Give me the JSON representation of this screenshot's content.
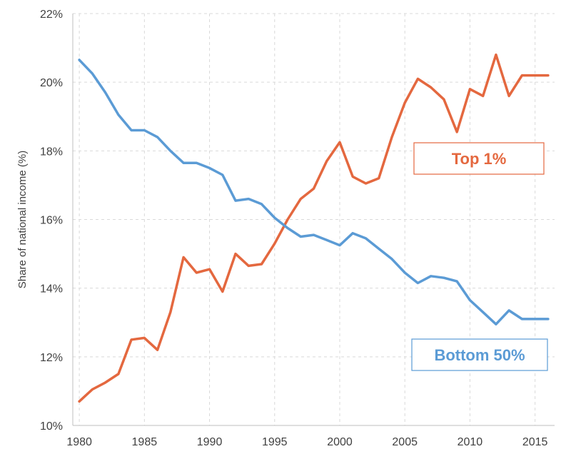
{
  "chart_data": {
    "type": "line",
    "xlabel": "",
    "ylabel": "Share of national income (%)",
    "xlim": [
      1979.5,
      2016.5
    ],
    "ylim": [
      10,
      22
    ],
    "x_ticks": [
      1980,
      1985,
      1990,
      1995,
      2000,
      2005,
      2010,
      2015
    ],
    "y_ticks": [
      10,
      12,
      14,
      16,
      18,
      20,
      22
    ],
    "y_tick_labels": [
      "10%",
      "12%",
      "14%",
      "16%",
      "18%",
      "20%",
      "22%"
    ],
    "grid": true,
    "x": [
      1980,
      1981,
      1982,
      1983,
      1984,
      1985,
      1986,
      1987,
      1988,
      1989,
      1990,
      1991,
      1992,
      1993,
      1994,
      1995,
      1996,
      1997,
      1998,
      1999,
      2000,
      2001,
      2002,
      2003,
      2004,
      2005,
      2006,
      2007,
      2008,
      2009,
      2010,
      2011,
      2012,
      2013,
      2014,
      2015,
      2016
    ],
    "series": [
      {
        "name": "Top 1%",
        "color": "#e4683f",
        "values": [
          10.7,
          11.05,
          11.25,
          11.5,
          12.5,
          12.55,
          12.2,
          13.3,
          14.9,
          14.45,
          14.55,
          13.9,
          15.0,
          14.65,
          14.7,
          15.3,
          16.0,
          16.6,
          16.9,
          17.7,
          18.25,
          17.25,
          17.05,
          17.2,
          18.4,
          19.4,
          20.1,
          19.85,
          19.5,
          18.55,
          19.8,
          19.6,
          20.8,
          19.6,
          20.2,
          20.2,
          20.2
        ]
      },
      {
        "name": "Bottom 50%",
        "color": "#5b9bd5",
        "values": [
          20.65,
          20.25,
          19.7,
          19.05,
          18.6,
          18.6,
          18.4,
          18.0,
          17.65,
          17.65,
          17.5,
          17.3,
          16.55,
          16.6,
          16.45,
          16.05,
          15.75,
          15.5,
          15.55,
          15.4,
          15.25,
          15.6,
          15.45,
          15.15,
          14.85,
          14.45,
          14.15,
          14.35,
          14.3,
          14.2,
          13.65,
          13.3,
          12.95,
          13.35,
          13.1,
          13.1,
          13.1
        ]
      }
    ]
  }
}
